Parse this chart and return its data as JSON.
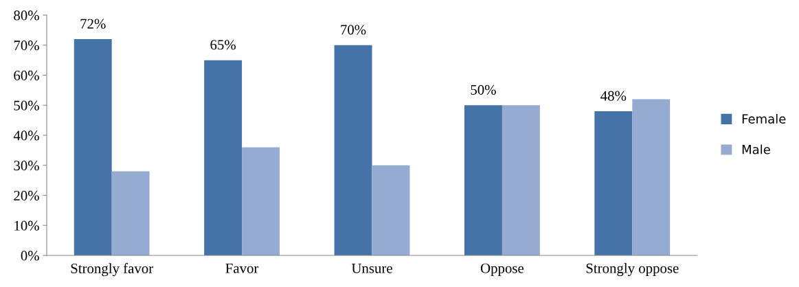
{
  "chart_data": {
    "type": "bar",
    "categories": [
      "Strongly favor",
      "Favor",
      "Unsure",
      "Oppose",
      "Strongly oppose"
    ],
    "series": [
      {
        "name": "Female",
        "color": "#4572a7",
        "values": [
          72,
          65,
          70,
          50,
          48
        ],
        "value_labels": [
          "72%",
          "65%",
          "70%",
          "50%",
          "48%"
        ]
      },
      {
        "name": "Male",
        "color": "#95abd2",
        "values": [
          28,
          36,
          30,
          50,
          52
        ]
      }
    ],
    "ylim": [
      0,
      80
    ],
    "yticks": [
      {
        "value": 0,
        "label": "0%"
      },
      {
        "value": 10,
        "label": "10%"
      },
      {
        "value": 20,
        "label": "20%"
      },
      {
        "value": 30,
        "label": "30%"
      },
      {
        "value": 40,
        "label": "40%"
      },
      {
        "value": 50,
        "label": "50%"
      },
      {
        "value": 60,
        "label": "60%"
      },
      {
        "value": 70,
        "label": "70%"
      },
      {
        "value": 80,
        "label": "80%"
      }
    ],
    "grid": false,
    "legend": "right"
  }
}
